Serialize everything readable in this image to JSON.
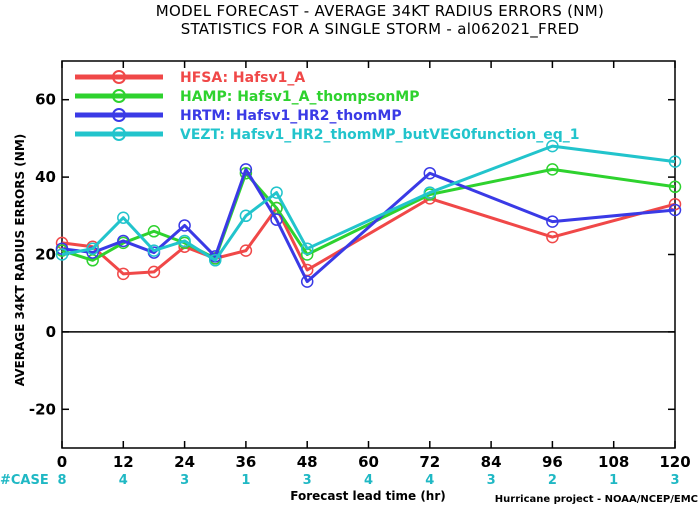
{
  "chart_data": {
    "type": "line",
    "title": "MODEL FORECAST - AVERAGE 34KT RADIUS ERRORS (NM)",
    "subtitle": "STATISTICS FOR A SINGLE STORM - al062021_FRED",
    "xlabel": "Forecast lead time (hr)",
    "ylabel": "AVERAGE 34KT RADIUS ERRORS (NM)",
    "xlim": [
      0,
      120
    ],
    "ylim": [
      -30,
      70
    ],
    "x_ticks": [
      0,
      12,
      24,
      36,
      48,
      60,
      72,
      84,
      96,
      108,
      120
    ],
    "y_ticks": [
      -20,
      0,
      20,
      40,
      60
    ],
    "zero_line": true,
    "legend_position": "top-left",
    "series": [
      {
        "name": "HFSA: Hafsv1_A",
        "color": "#f04848",
        "x": [
          0,
          6,
          12,
          18,
          24,
          30,
          36,
          42,
          48,
          72,
          96,
          120
        ],
        "y": [
          23,
          22,
          15,
          15.5,
          22,
          19,
          21,
          32,
          16,
          34.5,
          24.5,
          33
        ]
      },
      {
        "name": "HAMP: Hafsv1_A_thompsonMP",
        "color": "#2ed22e",
        "x": [
          0,
          6,
          12,
          18,
          24,
          30,
          36,
          42,
          48,
          72,
          96,
          120
        ],
        "y": [
          21,
          18.5,
          23,
          26,
          23,
          19,
          41,
          32,
          20,
          35.5,
          42,
          37.5
        ]
      },
      {
        "name": "HRTM: Hafsv1_HR2_thomMP",
        "color": "#3a3ae6",
        "x": [
          0,
          6,
          12,
          18,
          24,
          30,
          36,
          42,
          48,
          72,
          96,
          120
        ],
        "y": [
          21.5,
          20.5,
          23.5,
          20.5,
          27.5,
          19.5,
          42,
          29,
          13,
          41,
          28.5,
          31.5
        ]
      },
      {
        "name": "VEZT: Hafsv1_HR2_thomMP_butVEG0function_eq_1",
        "color": "#22c4cc",
        "x": [
          0,
          6,
          12,
          18,
          24,
          30,
          36,
          42,
          48,
          72,
          96,
          120
        ],
        "y": [
          20,
          21.5,
          29.5,
          21,
          23.5,
          18.5,
          30,
          36,
          21.5,
          36,
          48,
          44
        ]
      }
    ],
    "case_label": "#CASE",
    "case_counts": [
      {
        "x": 0,
        "n": "8"
      },
      {
        "x": 12,
        "n": "4"
      },
      {
        "x": 24,
        "n": "3"
      },
      {
        "x": 36,
        "n": "1"
      },
      {
        "x": 48,
        "n": "3"
      },
      {
        "x": 60,
        "n": "4"
      },
      {
        "x": 72,
        "n": "4"
      },
      {
        "x": 84,
        "n": "3"
      },
      {
        "x": 96,
        "n": "2"
      },
      {
        "x": 108,
        "n": "1"
      },
      {
        "x": 120,
        "n": "3"
      }
    ],
    "credit": "Hurricane project - NOAA/NCEP/EMC"
  }
}
